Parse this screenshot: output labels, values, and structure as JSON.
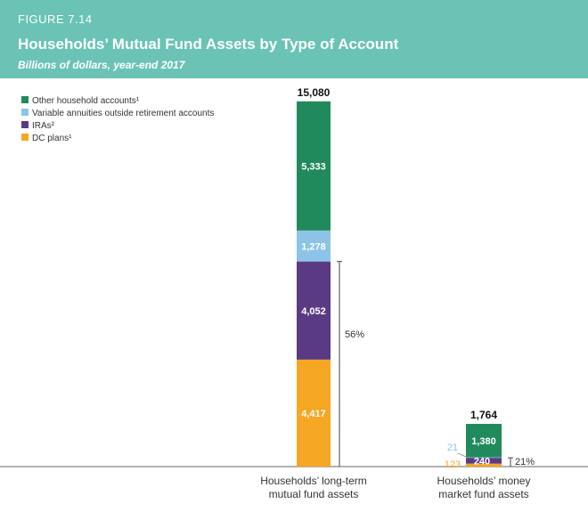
{
  "figure": {
    "label": "FIGURE 7.14",
    "title": "Households’ Mutual Fund Assets by Type of Account",
    "subtitle": "Billions of dollars, year-end 2017"
  },
  "colors": {
    "header_bg": "#6ac3b5",
    "other": "#218a5c",
    "va": "#8cc3e6",
    "ira": "#5b3a84",
    "dc": "#f5a623",
    "bracket_text": "#333333"
  },
  "chart_data": {
    "type": "bar",
    "stacked": true,
    "categories": [
      "Households’ long-term\nmutual fund assets",
      "Households’ money\nmarket fund assets"
    ],
    "series": [
      {
        "name": "DC plans¹",
        "key": "dc",
        "values": [
          4417,
          123
        ],
        "labels": [
          "4,417",
          "123"
        ]
      },
      {
        "name": "IRAs²",
        "key": "ira",
        "values": [
          4052,
          240
        ],
        "labels": [
          "4,052",
          "240"
        ]
      },
      {
        "name": "Variable annuities outside retirement accounts",
        "key": "va",
        "values": [
          1278,
          21
        ],
        "labels": [
          "1,278",
          "21"
        ]
      },
      {
        "name": "Other household accounts¹",
        "key": "other",
        "values": [
          5333,
          1380
        ],
        "labels": [
          "5,333",
          "1,380"
        ]
      }
    ],
    "totals": [
      "15,080",
      "1,764"
    ],
    "total_values": [
      15080,
      1764
    ],
    "retirement_share": [
      "56%",
      "21%"
    ],
    "legend_order": [
      "other",
      "va",
      "ira",
      "dc"
    ],
    "legend_position": "top-left",
    "grid": false
  }
}
